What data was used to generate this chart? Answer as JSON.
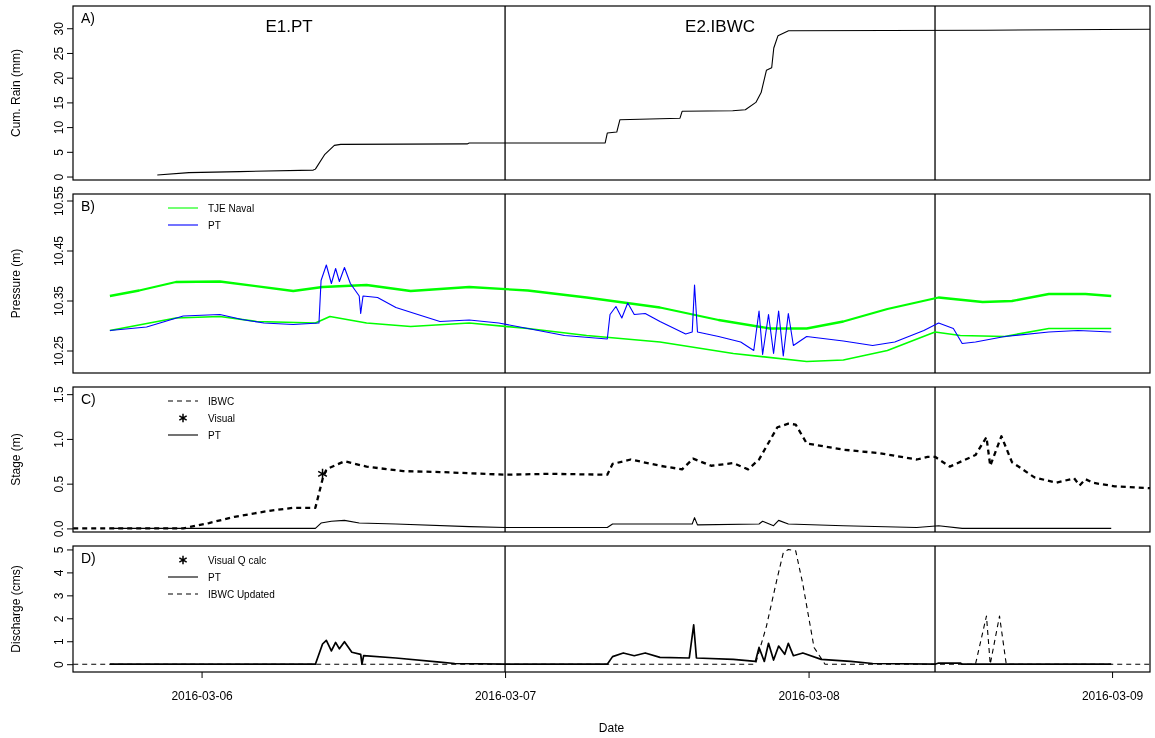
{
  "chart_data": [
    {
      "type": "line",
      "ylabel": "Cum. Rain (mm)",
      "xlim": [
        "2016-03-05T13:50",
        "2016-03-09T03:00"
      ],
      "ylim": [
        -0.7,
        34.5
      ],
      "yticks": [
        0,
        5,
        10,
        15,
        20,
        25,
        30
      ],
      "tick_labels": "y",
      "grid": false,
      "legend": false,
      "annotations": [
        "A)",
        "E1.PT",
        "E2.IBWC"
      ],
      "ref_lines": [
        {
          "axis": "x",
          "value": "2016-03-07",
          "color": "#000000"
        },
        {
          "axis": "x",
          "value": "2016-03-08T10:00",
          "color": "#000000"
        }
      ],
      "series": [
        {
          "color": "#000000",
          "x": [
            "2016-03-05T20:30",
            "2016-03-05T23:00",
            "2016-03-06T03:00",
            "2016-03-06T08:50",
            "2016-03-06T09:00",
            "2016-03-06T09:45",
            "2016-03-06T10:30",
            "2016-03-06T11:00",
            "2016-03-06T21:00",
            "2016-03-06T21:10",
            "2016-03-07T07:55",
            "2016-03-07T08:05",
            "2016-03-07T08:50",
            "2016-03-07T09:05",
            "2016-03-07T13:50",
            "2016-03-07T14:00",
            "2016-03-07T18:00",
            "2016-03-07T19:00",
            "2016-03-07T19:50",
            "2016-03-07T20:15",
            "2016-03-07T20:40",
            "2016-03-07T21:05",
            "2016-03-07T21:15",
            "2016-03-07T21:35",
            "2016-03-07T22:25",
            "2016-03-08T14:00",
            "2016-03-09T03:00"
          ],
          "values": [
            0.3,
            0.8,
            1.0,
            1.3,
            1.5,
            4.5,
            6.3,
            6.5,
            6.6,
            6.8,
            6.8,
            8.8,
            9.0,
            11.5,
            11.8,
            13.2,
            13.3,
            13.5,
            15,
            17,
            21.5,
            22,
            26,
            28.5,
            29.5,
            29.6,
            29.8
          ]
        }
      ]
    },
    {
      "type": "line",
      "ylabel": "Pressure (m)",
      "xlim": [
        "2016-03-05T13:50",
        "2016-03-09T03:00"
      ],
      "ylim": [
        10.205,
        10.563
      ],
      "yticks": [
        10.25,
        10.35,
        10.45,
        10.55
      ],
      "tick_labels": "y",
      "grid": false,
      "legend": "top left",
      "annotations": [
        "B)"
      ],
      "ref_lines": [
        {
          "axis": "x",
          "value": "2016-03-07",
          "color": "#000000"
        },
        {
          "axis": "x",
          "value": "2016-03-08T10:00",
          "color": "#000000"
        }
      ],
      "series": [
        {
          "name": "TJE Naval",
          "color": "#00ff00",
          "x": [
            "2016-03-05T16:45",
            "2016-03-05T19:04",
            "2016-03-05T21:58",
            "2016-03-06T01:27",
            "2016-03-06T07:15",
            "2016-03-06T09:34",
            "2016-03-06T13:03",
            "2016-03-06T16:32",
            "2016-03-06T21:10",
            "2016-03-07T01:48",
            "2016-03-07T06:27",
            "2016-03-07T12:15",
            "2016-03-07T16:53",
            "2016-03-07T20:57",
            "2016-03-07T23:51",
            "2016-03-08T02:45",
            "2016-03-08T06:14",
            "2016-03-08T10:17",
            "2016-03-08T13:46",
            "2016-03-08T16:05",
            "2016-03-08T19:00",
            "2016-03-08T21:54",
            "2016-03-08T23:56"
          ],
          "values": [
            10.359,
            10.37,
            10.387,
            10.388,
            10.369,
            10.377,
            10.381,
            10.369,
            10.377,
            10.37,
            10.356,
            10.336,
            10.311,
            10.294,
            10.294,
            10.308,
            10.333,
            10.356,
            10.347,
            10.349,
            10.363,
            10.363,
            10.359
          ]
        },
        {
          "color": "#00ff00",
          "x": [
            "2016-03-05T16:45",
            "2016-03-05T21:58",
            "2016-03-06T01:27",
            "2016-03-06T04:21",
            "2016-03-06T09:00",
            "2016-03-06T10:09",
            "2016-03-06T13:03",
            "2016-03-06T16:32",
            "2016-03-06T21:10",
            "2016-03-07T01:48",
            "2016-03-07T06:27",
            "2016-03-07T12:15",
            "2016-03-07T18:03",
            "2016-03-07T23:51",
            "2016-03-08T02:45",
            "2016-03-08T06:14",
            "2016-03-08T10:00",
            "2016-03-08T12:00",
            "2016-03-08T15:31",
            "2016-03-08T19:00",
            "2016-03-08T23:56"
          ],
          "values": [
            10.29,
            10.315,
            10.318,
            10.308,
            10.305,
            10.318,
            10.305,
            10.298,
            10.305,
            10.294,
            10.28,
            10.267,
            10.244,
            10.228,
            10.231,
            10.25,
            10.287,
            10.28,
            10.278,
            10.294,
            10.294
          ]
        },
        {
          "name": "PT",
          "color": "#0000ff",
          "x": [
            "2016-03-05T16:45",
            "2016-03-05T19:39",
            "2016-03-05T22:33",
            "2016-03-06T01:27",
            "2016-03-06T03:12",
            "2016-03-06T04:56",
            "2016-03-06T07:15",
            "2016-03-06T09:17",
            "2016-03-06T09:27",
            "2016-03-06T09:52",
            "2016-03-06T10:16",
            "2016-03-06T10:36",
            "2016-03-06T10:54",
            "2016-03-06T11:18",
            "2016-03-06T11:46",
            "2016-03-06T12:28",
            "2016-03-06T12:35",
            "2016-03-06T12:46",
            "2016-03-06T13:55",
            "2016-03-06T15:22",
            "2016-03-06T17:06",
            "2016-03-06T18:51",
            "2016-03-06T21:10",
            "2016-03-06T23:30",
            "2016-03-07T01:48",
            "2016-03-07T04:42",
            "2016-03-07T08:05",
            "2016-03-07T08:18",
            "2016-03-07T08:46",
            "2016-03-07T09:14",
            "2016-03-07T09:42",
            "2016-03-07T10:13",
            "2016-03-07T11:05",
            "2016-03-07T12:15",
            "2016-03-07T14:17",
            "2016-03-07T14:48",
            "2016-03-07T14:59",
            "2016-03-07T15:13",
            "2016-03-07T16:53",
            "2016-03-07T18:38",
            "2016-03-07T19:40",
            "2016-03-07T20:05",
            "2016-03-07T20:22",
            "2016-03-07T20:50",
            "2016-03-07T21:14",
            "2016-03-07T21:38",
            "2016-03-07T22:00",
            "2016-03-07T22:24",
            "2016-03-07T22:48",
            "2016-03-07T23:51",
            "2016-03-08T02:45",
            "2016-03-08T05:04",
            "2016-03-08T06:49",
            "2016-03-08T09:07",
            "2016-03-08T10:17",
            "2016-03-08T11:27",
            "2016-03-08T12:09",
            "2016-03-08T13:12",
            "2016-03-08T15:31",
            "2016-03-08T19:00",
            "2016-03-08T21:19",
            "2016-03-08T23:56"
          ],
          "values": [
            10.29,
            10.297,
            10.319,
            10.322,
            10.312,
            10.305,
            10.302,
            10.305,
            10.39,
            10.421,
            10.384,
            10.414,
            10.388,
            10.416,
            10.384,
            10.359,
            10.324,
            10.359,
            10.356,
            10.336,
            10.322,
            10.308,
            10.311,
            10.305,
            10.294,
            10.28,
            10.273,
            10.322,
            10.338,
            10.315,
            10.345,
            10.322,
            10.324,
            10.308,
            10.283,
            10.287,
            10.381,
            10.287,
            10.278,
            10.267,
            10.25,
            10.329,
            10.242,
            10.322,
            10.244,
            10.329,
            10.239,
            10.324,
            10.26,
            10.278,
            10.269,
            10.26,
            10.267,
            10.29,
            10.305,
            10.294,
            10.264,
            10.267,
            10.278,
            10.287,
            10.29,
            10.287
          ]
        }
      ]
    },
    {
      "type": "line",
      "ylabel": "Stage (m)",
      "xlim": [
        "2016-03-05T13:50",
        "2016-03-09T03:00"
      ],
      "ylim": [
        -0.04,
        1.58
      ],
      "yticks": [
        {
          "value": 0,
          "label": "0.0"
        },
        0.5,
        {
          "value": 1,
          "label": "1.0"
        },
        1.5
      ],
      "tick_labels": "y",
      "grid": false,
      "legend": "top left",
      "annotations": [
        "C)"
      ],
      "ref_lines": [
        {
          "axis": "x",
          "value": "2016-03-07",
          "color": "#000000"
        },
        {
          "axis": "x",
          "value": "2016-03-08T10:00",
          "color": "#000000"
        }
      ],
      "series": [
        {
          "name": "IBWC",
          "color": "#000000",
          "line_style": "dashed",
          "x": [
            "2016-03-05T13:51",
            "2016-03-05T22:33",
            "2016-03-06T00:35",
            "2016-03-06T02:36",
            "2016-03-06T05:30",
            "2016-03-06T07:15",
            "2016-03-06T09:00",
            "2016-03-06T09:34",
            "2016-03-06T09:52",
            "2016-03-06T11:18",
            "2016-03-06T13:03",
            "2016-03-06T15:57",
            "2016-03-06T18:51",
            "2016-03-07T00:04",
            "2016-03-07T03:33",
            "2016-03-07T08:05",
            "2016-03-07T08:30",
            "2016-03-07T09:56",
            "2016-03-07T12:15",
            "2016-03-07T14:00",
            "2016-03-07T14:52",
            "2016-03-07T16:18",
            "2016-03-07T18:03",
            "2016-03-07T19:13",
            "2016-03-07T20:05",
            "2016-03-07T21:32",
            "2016-03-07T22:24",
            "2016-03-07T22:59",
            "2016-03-07T23:51",
            "2016-03-08T02:45",
            "2016-03-08T05:39",
            "2016-03-08T08:33",
            "2016-03-08T09:25",
            "2016-03-08T10:00",
            "2016-03-08T11:10",
            "2016-03-08T13:12",
            "2016-03-08T14:04",
            "2016-03-08T14:22",
            "2016-03-08T15:15",
            "2016-03-08T16:05",
            "2016-03-08T17:52",
            "2016-03-08T19:36",
            "2016-03-08T21:00",
            "2016-03-08T21:26",
            "2016-03-08T21:54",
            "2016-03-08T22:29",
            "2016-03-09T00:13",
            "2016-03-09T03:00"
          ],
          "values": [
            0,
            0,
            0.06,
            0.13,
            0.2,
            0.23,
            0.23,
            0.55,
            0.66,
            0.75,
            0.69,
            0.64,
            0.63,
            0.6,
            0.61,
            0.6,
            0.72,
            0.77,
            0.7,
            0.66,
            0.78,
            0.7,
            0.73,
            0.66,
            0.77,
            1.13,
            1.17,
            1.16,
            0.95,
            0.88,
            0.84,
            0.77,
            0.8,
            0.8,
            0.69,
            0.82,
            1.02,
            0.7,
            1.03,
            0.74,
            0.57,
            0.51,
            0.56,
            0.48,
            0.55,
            0.51,
            0.47,
            0.45
          ]
        },
        {
          "name": "Visual",
          "type": "scatter",
          "marker": "cross",
          "color": "#000000",
          "x": [
            "2016-03-06T09:34"
          ],
          "values": [
            0.61
          ]
        },
        {
          "name": "PT",
          "color": "#000000",
          "x": [
            "2016-03-05T16:45",
            "2016-03-06T09:00",
            "2016-03-06T09:27",
            "2016-03-06T10:16",
            "2016-03-06T11:18",
            "2016-03-06T12:28",
            "2016-03-06T15:22",
            "2016-03-06T21:10",
            "2016-03-07T00:04",
            "2016-03-07T08:05",
            "2016-03-07T08:30",
            "2016-03-07T12:15",
            "2016-03-07T14:48",
            "2016-03-07T14:59",
            "2016-03-07T15:13",
            "2016-03-07T20:05",
            "2016-03-07T20:22",
            "2016-03-07T21:14",
            "2016-03-07T21:38",
            "2016-03-07T22:24",
            "2016-03-08T02:45",
            "2016-03-08T08:33",
            "2016-03-08T10:17",
            "2016-03-08T12:09",
            "2016-03-08T23:56"
          ],
          "values": [
            0,
            0,
            0.06,
            0.08,
            0.09,
            0.06,
            0.05,
            0.02,
            0.01,
            0.01,
            0.05,
            0.05,
            0.05,
            0.12,
            0.04,
            0.05,
            0.08,
            0.03,
            0.09,
            0.05,
            0.03,
            0.01,
            0.03,
            0,
            0
          ]
        }
      ]
    },
    {
      "type": "line",
      "xlabel": "Date",
      "ylabel": "Discharge (cms)",
      "xlim": [
        "2016-03-05T13:50",
        "2016-03-09T03:00"
      ],
      "xticks": [
        "2016-03-06",
        "2016-03-07",
        "2016-03-08",
        "2016-03-09"
      ],
      "ylim": [
        -0.34,
        5.15
      ],
      "yticks": [
        0,
        1,
        2,
        3,
        4,
        5
      ],
      "grid": false,
      "legend": "top left",
      "annotations": [
        "D)"
      ],
      "ref_lines": [
        {
          "axis": "x",
          "value": "2016-03-07",
          "color": "#000000"
        },
        {
          "axis": "x",
          "value": "2016-03-08T10:00",
          "color": "#000000"
        }
      ],
      "series": [
        {
          "name": "Visual Q calc",
          "type": "scatter",
          "marker": "cross",
          "color": "#000000"
        },
        {
          "name": "PT",
          "color": "#000000",
          "x": [
            "2016-03-05T16:45",
            "2016-03-06T09:00",
            "2016-03-06T09:34",
            "2016-03-06T09:52",
            "2016-03-06T10:16",
            "2016-03-06T10:36",
            "2016-03-06T10:54",
            "2016-03-06T11:18",
            "2016-03-06T11:53",
            "2016-03-06T12:35",
            "2016-03-06T12:41",
            "2016-03-06T12:49",
            "2016-03-06T15:22",
            "2016-03-06T18:51",
            "2016-03-06T20:01",
            "2016-03-07T00:00",
            "2016-03-07T08:05",
            "2016-03-07T08:30",
            "2016-03-07T09:21",
            "2016-03-07T10:13",
            "2016-03-07T11:05",
            "2016-03-07T12:15",
            "2016-03-07T14:34",
            "2016-03-07T14:55",
            "2016-03-07T15:08",
            "2016-03-07T18:03",
            "2016-03-07T19:48",
            "2016-03-07T20:05",
            "2016-03-07T20:30",
            "2016-03-07T20:50",
            "2016-03-07T21:14",
            "2016-03-07T21:38",
            "2016-03-07T22:07",
            "2016-03-07T22:24",
            "2016-03-07T22:48",
            "2016-03-07T23:33",
            "2016-03-08T01:00",
            "2016-03-08T03:20",
            "2016-03-08T05:04",
            "2016-03-08T10:00",
            "2016-03-08T10:17",
            "2016-03-08T12:00",
            "2016-03-08T12:09",
            "2016-03-08T23:56"
          ],
          "values": [
            0,
            0,
            0.88,
            1.04,
            0.58,
            0.95,
            0.67,
            0.98,
            0.52,
            0.43,
            0,
            0.37,
            0.27,
            0.09,
            0.03,
            0,
            0,
            0.33,
            0.49,
            0.37,
            0.49,
            0.3,
            0.27,
            1.71,
            0.27,
            0.21,
            0.12,
            0.73,
            0.12,
            0.91,
            0.18,
            0.79,
            0.43,
            0.91,
            0.37,
            0.49,
            0.21,
            0.12,
            0.03,
            0,
            0.05,
            0.05,
            0,
            0
          ]
        },
        {
          "name": "IBWC Updated",
          "color": "#000000",
          "line_style": "dashed",
          "x": [
            "2016-03-05T13:51",
            "2016-03-07T19:48",
            "2016-03-07T20:40",
            "2016-03-07T21:32",
            "2016-03-07T22:00",
            "2016-03-07T22:24",
            "2016-03-07T22:59",
            "2016-03-07T23:33",
            "2016-03-08T00:26",
            "2016-03-08T01:18",
            "2016-03-08T13:12",
            "2016-03-08T14:04",
            "2016-03-08T14:22",
            "2016-03-08T15:06",
            "2016-03-08T15:38",
            "2016-03-09T03:00"
          ],
          "values": [
            0,
            0,
            1.65,
            3.78,
            4.85,
            5.0,
            4.94,
            3.48,
            0.73,
            0,
            0,
            2.1,
            0,
            2.1,
            0,
            0
          ]
        }
      ]
    }
  ]
}
